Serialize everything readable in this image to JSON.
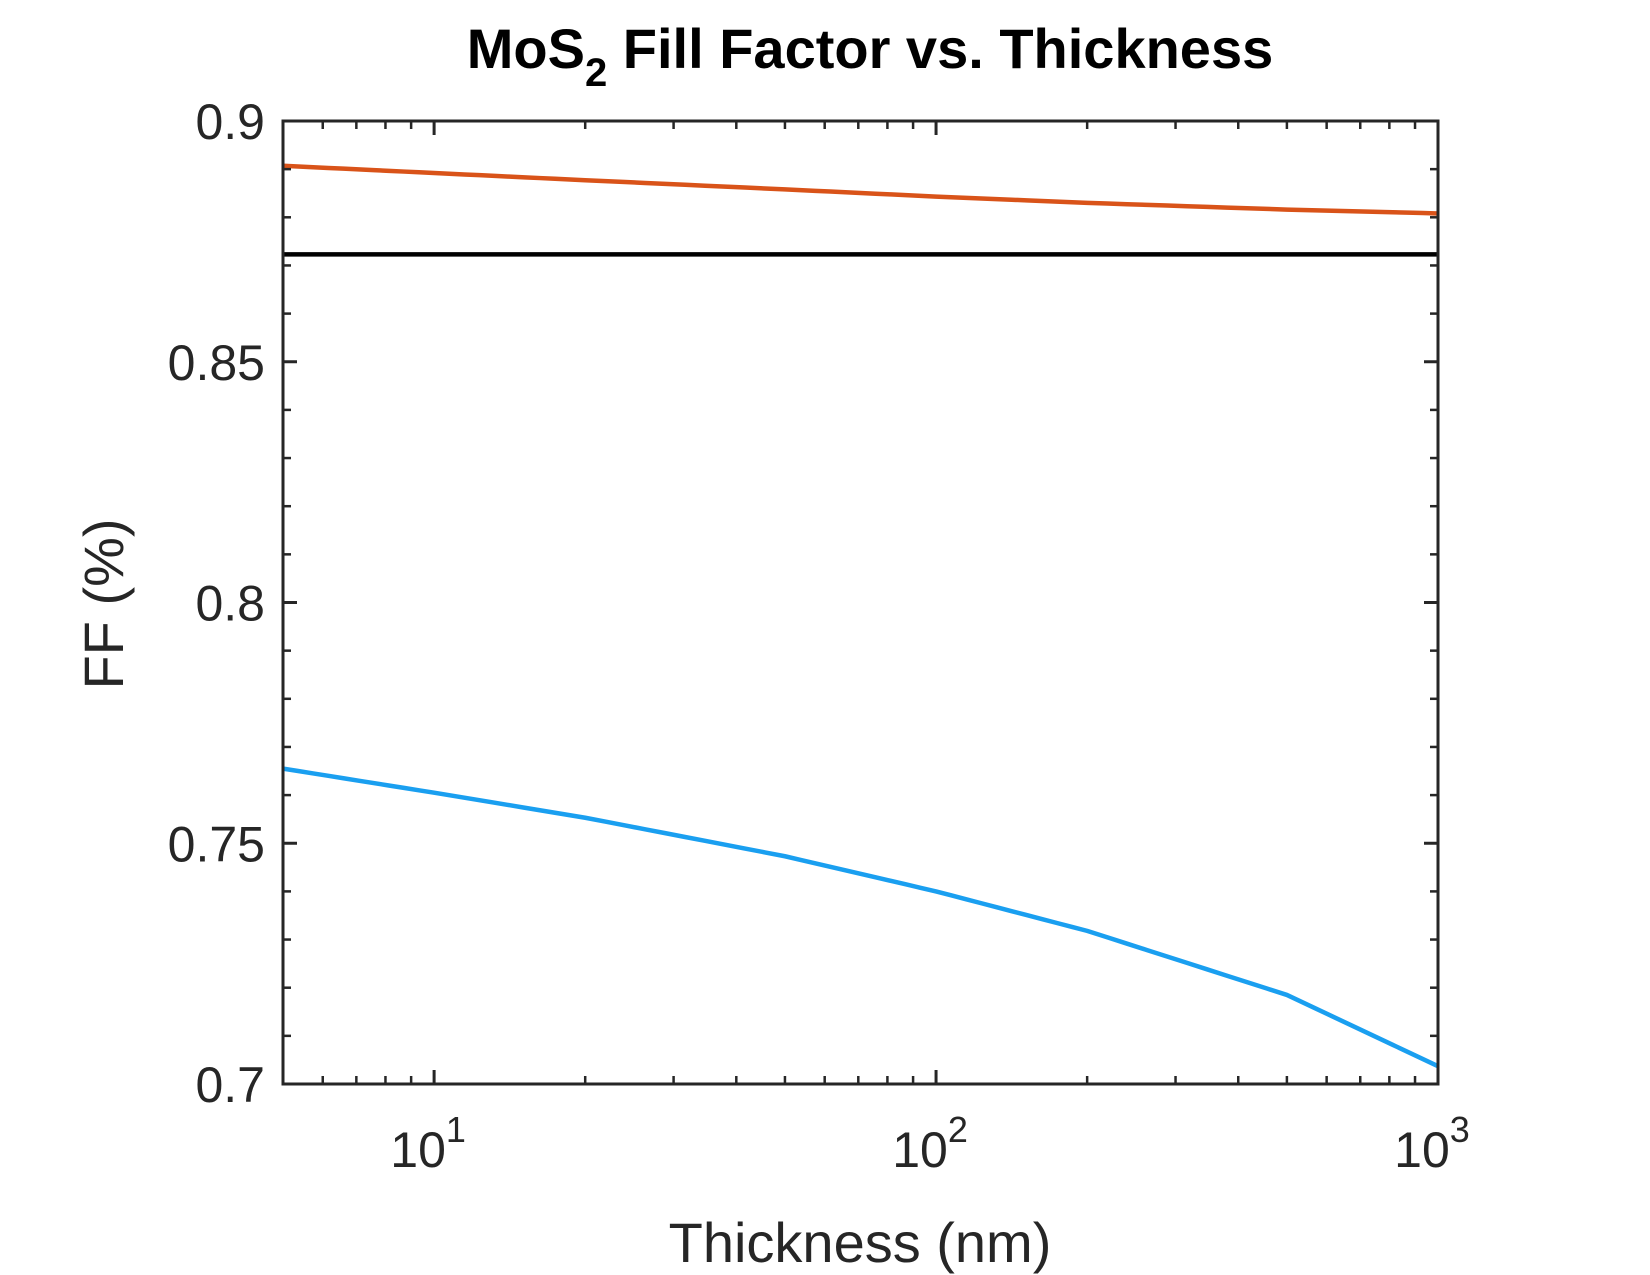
{
  "chart_data": {
    "type": "line",
    "title": "MoS",
    "title_subscript": "2",
    "title_rest": " Fill Factor vs. Thickness",
    "xlabel": "Thickness (nm)",
    "ylabel": "FF (%)",
    "x_scale": "log",
    "xlim": [
      5,
      1000
    ],
    "ylim": [
      0.7,
      0.9
    ],
    "x_ticks": [
      {
        "base": "10",
        "exp": "1",
        "value": 10
      },
      {
        "base": "10",
        "exp": "2",
        "value": 100
      },
      {
        "base": "10",
        "exp": "3",
        "value": 1000
      }
    ],
    "y_ticks": [
      "0.7",
      "0.75",
      "0.8",
      "0.85",
      "0.9"
    ],
    "grid": false,
    "series": [
      {
        "color": "#D95319",
        "x": [
          5,
          10,
          20,
          50,
          100,
          200,
          500,
          1000
        ],
        "y": [
          0.8907,
          0.8892,
          0.8877,
          0.8858,
          0.8843,
          0.883,
          0.8816,
          0.8808
        ]
      },
      {
        "color": "#000000",
        "x": [
          5,
          1000
        ],
        "y": [
          0.8723,
          0.8723
        ]
      },
      {
        "color": "#1A9FF0",
        "x": [
          5,
          10,
          20,
          50,
          100,
          200,
          500,
          1000
        ],
        "y": [
          0.7655,
          0.7605,
          0.7553,
          0.7473,
          0.74,
          0.7318,
          0.7185,
          0.7037
        ]
      }
    ]
  }
}
